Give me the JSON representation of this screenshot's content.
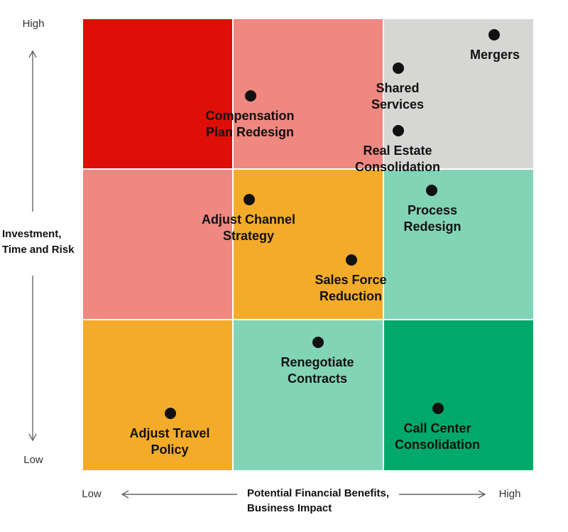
{
  "y_axis": {
    "high": "High",
    "low": "Low",
    "title_lines": [
      "Investment,",
      "Time and Risk"
    ]
  },
  "x_axis": {
    "low": "Low",
    "high": "High",
    "title_lines": [
      "Potential Financial Benefits,",
      "Business Impact"
    ]
  },
  "items": [
    {
      "label_lines": [
        "Mergers"
      ]
    },
    {
      "label_lines": [
        "Shared",
        "Services"
      ]
    },
    {
      "label_lines": [
        "Compensation",
        "Plan Redesign"
      ]
    },
    {
      "label_lines": [
        "Real Estate",
        "Consolidation"
      ]
    },
    {
      "label_lines": [
        "Adjust Channel",
        "Strategy"
      ]
    },
    {
      "label_lines": [
        "Process",
        "Redesign"
      ]
    },
    {
      "label_lines": [
        "Sales Force",
        "Reduction"
      ]
    },
    {
      "label_lines": [
        "Renegotiate",
        "Contracts"
      ]
    },
    {
      "label_lines": [
        "Call Center",
        "Consolidation"
      ]
    },
    {
      "label_lines": [
        "Adjust Travel",
        "Policy"
      ]
    }
  ]
}
